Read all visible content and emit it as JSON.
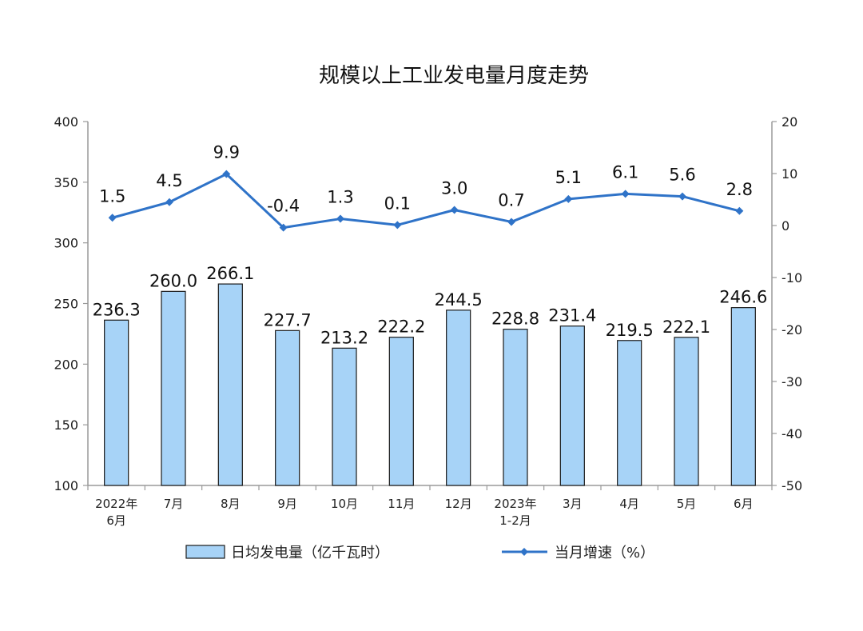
{
  "chart_data": {
    "type": "bar",
    "title": "规模以上工业发电量月度走势",
    "categories": [
      [
        "2022年",
        "6月"
      ],
      [
        "7月"
      ],
      [
        "8月"
      ],
      [
        "9月"
      ],
      [
        "10月"
      ],
      [
        "11月"
      ],
      [
        "12月"
      ],
      [
        "2023年",
        "1-2月"
      ],
      [
        "3月"
      ],
      [
        "4月"
      ],
      [
        "5月"
      ],
      [
        "6月"
      ]
    ],
    "series": [
      {
        "name": "日均发电量（亿千瓦时）",
        "type": "bar",
        "axis": "left",
        "color": "#a7d3f7",
        "stroke": "#1a1a1a",
        "values": [
          236.3,
          260.0,
          266.1,
          227.7,
          213.2,
          222.2,
          244.5,
          228.8,
          231.4,
          219.5,
          222.1,
          246.6
        ],
        "labels": [
          "236.3",
          "260.0",
          "266.1",
          "227.7",
          "213.2",
          "222.2",
          "244.5",
          "228.8",
          "231.4",
          "219.5",
          "222.1",
          "246.6"
        ]
      },
      {
        "name": "当月增速（%）",
        "type": "line",
        "axis": "right",
        "color": "#2f73c8",
        "values": [
          1.5,
          4.5,
          9.9,
          -0.4,
          1.3,
          0.1,
          3.0,
          0.7,
          5.1,
          6.1,
          5.6,
          2.8
        ],
        "labels": [
          "1.5",
          "4.5",
          "9.9",
          "-0.4",
          "1.3",
          "0.1",
          "3.0",
          "0.7",
          "5.1",
          "6.1",
          "5.6",
          "2.8"
        ]
      }
    ],
    "y_left": {
      "min": 100,
      "max": 400,
      "ticks": [
        100,
        150,
        200,
        250,
        300,
        350,
        400
      ]
    },
    "y_right": {
      "min": -50,
      "max": 20,
      "ticks": [
        -50,
        -40,
        -30,
        -20,
        -10,
        0,
        10,
        20
      ]
    },
    "legend": {
      "position": "bottom"
    },
    "grid": false
  }
}
